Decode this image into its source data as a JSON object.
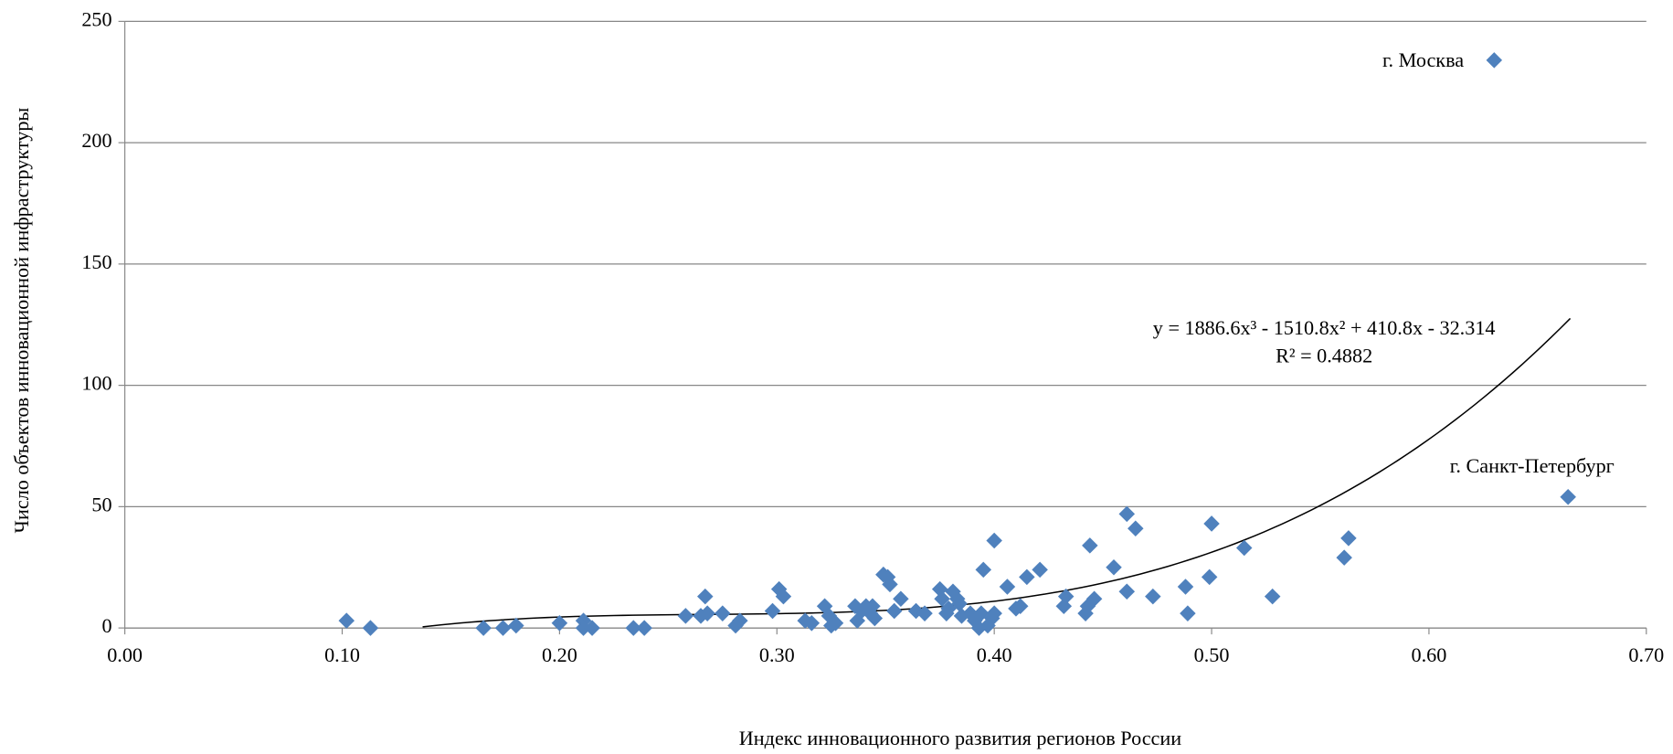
{
  "chart_data": {
    "type": "scatter",
    "xlabel": "Индекс инновационного развития регионов России",
    "ylabel": "Число объектов инновационной инфраструктуры",
    "color": "#4f81bd",
    "x": [
      0.102,
      0.113,
      0.165,
      0.174,
      0.18,
      0.2,
      0.211,
      0.211,
      0.215,
      0.234,
      0.239,
      0.258,
      0.265,
      0.267,
      0.268,
      0.275,
      0.281,
      0.283,
      0.298,
      0.301,
      0.303,
      0.313,
      0.316,
      0.322,
      0.324,
      0.325,
      0.327,
      0.336,
      0.337,
      0.339,
      0.341,
      0.343,
      0.344,
      0.345,
      0.349,
      0.351,
      0.352,
      0.354,
      0.357,
      0.364,
      0.368,
      0.375,
      0.376,
      0.378,
      0.379,
      0.381,
      0.383,
      0.384,
      0.385,
      0.389,
      0.391,
      0.393,
      0.394,
      0.395,
      0.397,
      0.399,
      0.4,
      0.4,
      0.406,
      0.41,
      0.412,
      0.415,
      0.421,
      0.432,
      0.433,
      0.442,
      0.443,
      0.444,
      0.446,
      0.455,
      0.461,
      0.461,
      0.465,
      0.473,
      0.488,
      0.489,
      0.499,
      0.5,
      0.515,
      0.528,
      0.561,
      0.563,
      0.63,
      0.664
    ],
    "y": [
      3,
      0,
      0,
      0,
      1,
      2,
      3,
      0,
      0,
      0,
      0,
      5,
      5,
      13,
      6,
      6,
      1,
      3,
      7,
      16,
      13,
      3,
      2,
      9,
      5,
      1,
      2,
      9,
      3,
      7,
      9,
      6,
      9,
      4,
      22,
      21,
      18,
      7,
      12,
      7,
      6,
      16,
      12,
      6,
      8,
      15,
      12,
      10,
      5,
      6,
      3,
      0,
      6,
      24,
      1,
      4,
      36,
      6,
      17,
      8,
      9,
      21,
      24,
      9,
      13,
      6,
      9,
      34,
      12,
      25,
      47,
      15,
      41,
      13,
      17,
      6,
      21,
      43,
      33,
      13,
      29,
      37,
      234,
      54
    ],
    "xlim": [
      0,
      0.7
    ],
    "xticks": [
      {
        "value": 0,
        "label": "0.00"
      },
      {
        "value": 0.1,
        "label": "0.10"
      },
      {
        "value": 0.2,
        "label": "0.20"
      },
      {
        "value": 0.3,
        "label": "0.30"
      },
      {
        "value": 0.4,
        "label": "0.40"
      },
      {
        "value": 0.5,
        "label": "0.50"
      },
      {
        "value": 0.6,
        "label": "0.60"
      },
      {
        "value": 0.7,
        "label": "0.70"
      }
    ],
    "ylim": [
      0,
      250
    ],
    "yticks": [
      0,
      50,
      100,
      150,
      200,
      250
    ],
    "grid": true,
    "trendline": {
      "coefficients": [
        1886.6,
        -1510.8,
        410.8,
        -32.314
      ],
      "range": [
        0.137,
        0.665
      ],
      "color": "#000000"
    },
    "trendline_label": [
      "y = 1886.6x³ - 1510.8x² + 410.8x - 32.314",
      "R² = 0.4882"
    ],
    "annotations": [
      "г. Москва",
      "г. Санкт-Петербург"
    ]
  }
}
